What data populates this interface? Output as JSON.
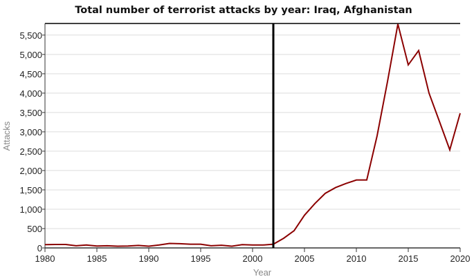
{
  "chart_data": {
    "type": "line",
    "title": "Total number of terrorist attacks by year: Iraq, Afghanistan",
    "xlabel": "Year",
    "ylabel": "Attacks",
    "xlim": [
      1980,
      2020
    ],
    "ylim": [
      0,
      5800
    ],
    "x_ticks": [
      1980,
      1985,
      1990,
      1995,
      2000,
      2005,
      2010,
      2015,
      2020
    ],
    "x_tick_labels": [
      "1980",
      "1985",
      "1990",
      "1995",
      "2000",
      "2005",
      "2010",
      "2015",
      "2020"
    ],
    "y_ticks": [
      0,
      500,
      1000,
      1500,
      2000,
      2500,
      3000,
      3500,
      4000,
      4500,
      5000,
      5500
    ],
    "y_tick_labels": [
      "0",
      "500",
      "1,000",
      "1,500",
      "2,000",
      "2,500",
      "3,000",
      "3,500",
      "4,000",
      "4,500",
      "5,000",
      "5,500"
    ],
    "grid": true,
    "marker_year": 2002,
    "series": [
      {
        "name": "Attacks",
        "color": "#8b0000",
        "x": [
          1980,
          1981,
          1982,
          1983,
          1984,
          1985,
          1986,
          1987,
          1988,
          1989,
          1990,
          1991,
          1992,
          1993,
          1994,
          1995,
          1996,
          1997,
          1998,
          1999,
          2000,
          2001,
          2002,
          2003,
          2004,
          2005,
          2006,
          2007,
          2008,
          2009,
          2010,
          2011,
          2012,
          2013,
          2014,
          2015,
          2016,
          2017,
          2018,
          2019,
          2020
        ],
        "values": [
          85,
          90,
          90,
          55,
          75,
          50,
          55,
          45,
          50,
          65,
          45,
          75,
          115,
          110,
          95,
          95,
          55,
          70,
          45,
          85,
          75,
          75,
          95,
          250,
          445,
          845,
          1145,
          1410,
          1560,
          1665,
          1755,
          1755,
          2900,
          4300,
          5785,
          4730,
          5100,
          4000,
          3270,
          2535,
          3480
        ]
      }
    ]
  }
}
